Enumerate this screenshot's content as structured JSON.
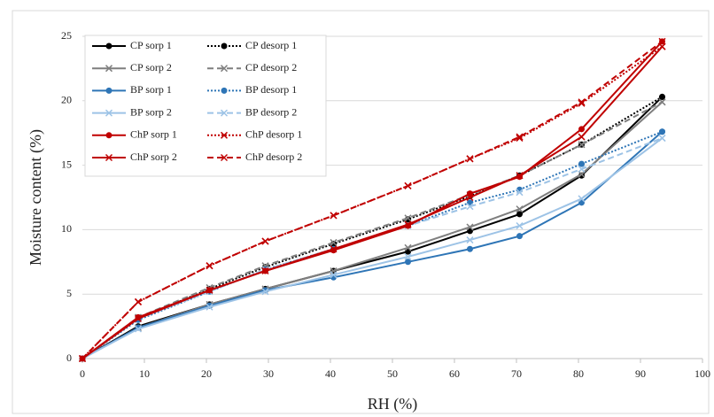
{
  "chart_data": {
    "type": "line",
    "xlabel": "RH (%)",
    "ylabel": "Moisture content (%)",
    "x": [
      0,
      9,
      20.5,
      29.5,
      40.5,
      52.5,
      62.5,
      70.5,
      80.5,
      93.5
    ],
    "xlim": [
      0,
      100
    ],
    "xticks": [
      0,
      10,
      20,
      30,
      40,
      50,
      60,
      70,
      80,
      90,
      100
    ],
    "ylim": [
      0,
      25
    ],
    "yticks": [
      0,
      5,
      10,
      15,
      20,
      25
    ],
    "grid": true,
    "legend": "upper-left",
    "series": [
      {
        "name": "CP sorp 1",
        "color": "#000000",
        "dash": "solid",
        "marker": "circle",
        "values": [
          0,
          2.5,
          4.2,
          5.4,
          6.8,
          8.3,
          9.9,
          11.2,
          14.2,
          20.3
        ]
      },
      {
        "name": "CP desorp 1",
        "color": "#000000",
        "dash": "dotted",
        "marker": "circle",
        "values": [
          0,
          3.1,
          5.4,
          7.1,
          8.9,
          10.8,
          12.6,
          14.2,
          16.6,
          20.3
        ]
      },
      {
        "name": "CP sorp 2",
        "color": "#7f7f7f",
        "dash": "solid",
        "marker": "x",
        "values": [
          0,
          2.4,
          4.2,
          5.4,
          6.8,
          8.6,
          10.2,
          11.6,
          14.3,
          19.9
        ]
      },
      {
        "name": "CP desorp 2",
        "color": "#7f7f7f",
        "dash": "dashed",
        "marker": "x",
        "values": [
          0,
          3.2,
          5.5,
          7.2,
          9.0,
          10.9,
          12.7,
          14.2,
          16.6,
          19.9
        ]
      },
      {
        "name": "BP sorp 1",
        "color": "#2e75b6",
        "dash": "solid",
        "marker": "circle",
        "values": [
          0,
          2.4,
          4.1,
          5.3,
          6.3,
          7.5,
          8.5,
          9.5,
          12.1,
          17.6
        ]
      },
      {
        "name": "BP desorp 1",
        "color": "#2e75b6",
        "dash": "dotted",
        "marker": "circle",
        "values": [
          0,
          3.0,
          5.2,
          6.9,
          8.5,
          10.3,
          12.1,
          13.1,
          15.1,
          17.6
        ]
      },
      {
        "name": "BP sorp 2",
        "color": "#9dc3e6",
        "dash": "solid",
        "marker": "x",
        "values": [
          0,
          2.3,
          4.0,
          5.2,
          6.5,
          7.9,
          9.2,
          10.3,
          12.4,
          17.1
        ]
      },
      {
        "name": "BP desorp 2",
        "color": "#9dc3e6",
        "dash": "dashed",
        "marker": "x",
        "values": [
          0,
          3.1,
          5.2,
          6.9,
          8.5,
          10.3,
          11.8,
          12.9,
          14.7,
          17.1
        ]
      },
      {
        "name": "ChP sorp 1",
        "color": "#c00000",
        "dash": "solid",
        "marker": "circle",
        "values": [
          0,
          3.2,
          5.3,
          6.8,
          8.4,
          10.3,
          12.8,
          14.1,
          17.8,
          24.6
        ]
      },
      {
        "name": "ChP desorp 1",
        "color": "#c00000",
        "dash": "dotted",
        "marker": "x",
        "values": [
          0,
          4.4,
          7.2,
          9.1,
          11.1,
          13.4,
          15.5,
          17.1,
          19.8,
          24.2
        ]
      },
      {
        "name": "ChP sorp 2",
        "color": "#c00000",
        "dash": "solid",
        "marker": "x",
        "values": [
          0,
          3.1,
          5.3,
          6.8,
          8.5,
          10.4,
          12.5,
          14.2,
          17.2,
          24.2
        ]
      },
      {
        "name": "ChP desorp 2",
        "color": "#c00000",
        "dash": "dashed",
        "marker": "x",
        "values": [
          0,
          4.4,
          7.2,
          9.1,
          11.1,
          13.4,
          15.5,
          17.2,
          19.9,
          24.6
        ]
      }
    ]
  }
}
